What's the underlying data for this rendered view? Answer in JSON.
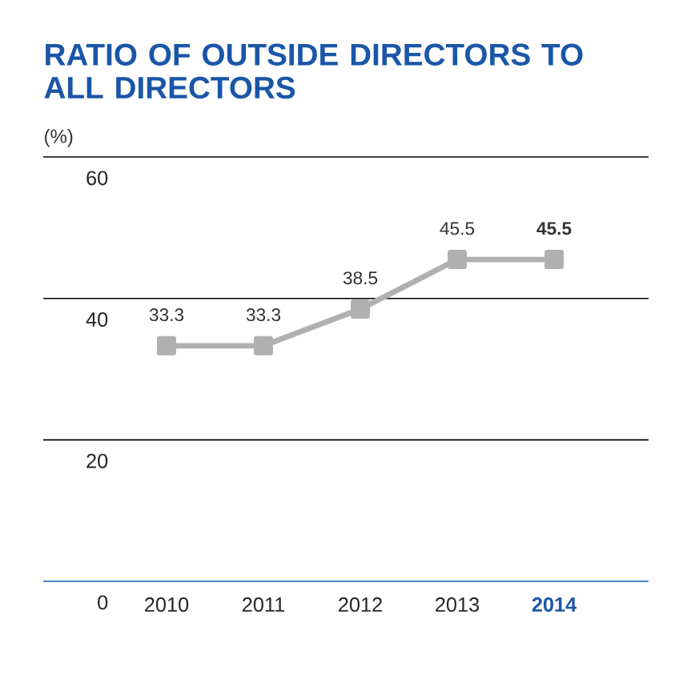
{
  "chart_data": {
    "type": "line",
    "title": "RATIO OF OUTSIDE DIRECTORS TO ALL DIRECTORS",
    "ylabel": "(%)",
    "categories": [
      "2010",
      "2011",
      "2012",
      "2013",
      "2014"
    ],
    "values": [
      33.3,
      33.3,
      38.5,
      45.5,
      45.5
    ],
    "value_labels": [
      "33.3",
      "33.3",
      "38.5",
      "45.5",
      "45.5"
    ],
    "color": "#b0b0b0",
    "marker": "square",
    "line_style": "solid",
    "ylim": [
      0,
      60
    ],
    "yticks": [
      0,
      20,
      40,
      60
    ],
    "grid": "y"
  }
}
